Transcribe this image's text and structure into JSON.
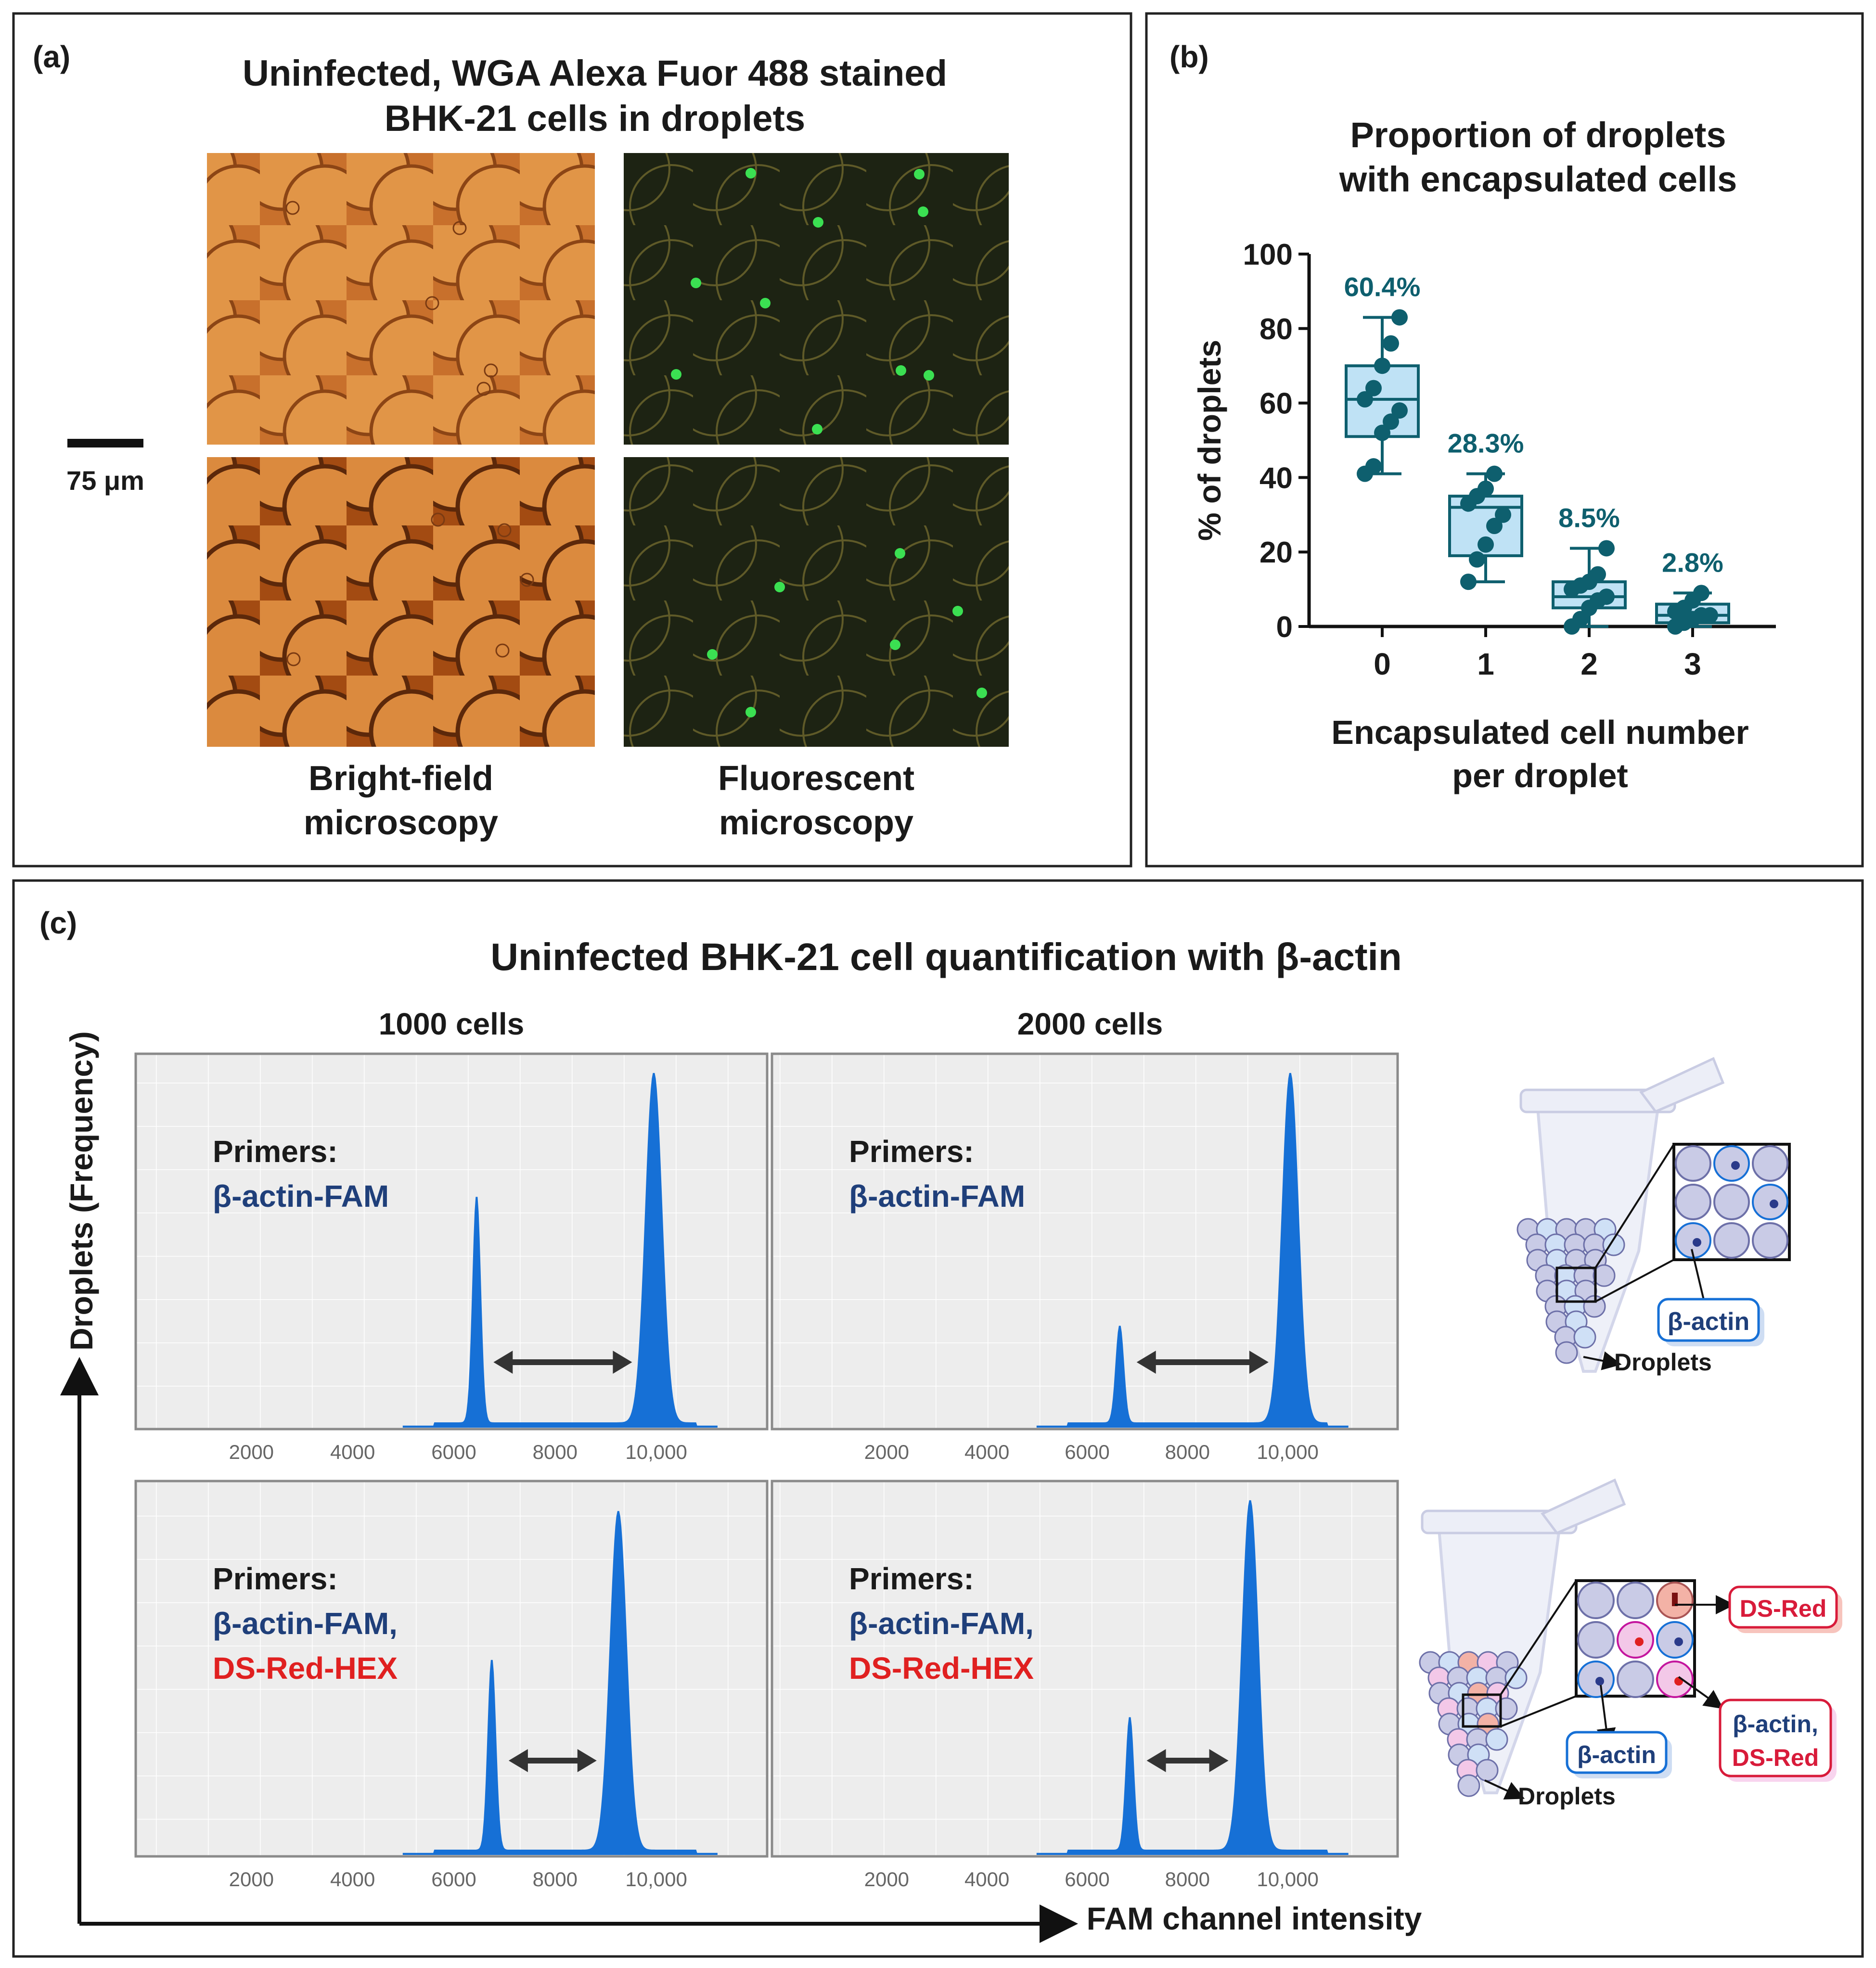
{
  "panel_a": {
    "letter": "(a)",
    "title_line1": "Uninfected, WGA Alexa Fuor 488 stained",
    "title_line2": "BHK-21 cells in droplets",
    "scale_bar_label": "75 μm",
    "caption_left_line1": "Bright-field",
    "caption_left_line2": "microscopy",
    "caption_right_line1": "Fluorescent",
    "caption_right_line2": "microscopy",
    "colors": {
      "brightfield": "#d9843c",
      "fluorescent_bg": "#1d2313",
      "cell_green": "#34d84a"
    }
  },
  "panel_b": {
    "letter": "(b)",
    "title_line1": "Proportion of droplets",
    "title_line2": "with encapsulated cells",
    "color": "#0e5f6e",
    "box_fill": "#bfe2f5",
    "chart_data": {
      "type": "box",
      "title": "Proportion of droplets with encapsulated cells",
      "xlabel_line1": "Encapsulated cell number",
      "xlabel_line2": "per droplet",
      "ylabel": "% of droplets",
      "ylim": [
        0,
        100
      ],
      "yticks": [
        0,
        20,
        40,
        60,
        80,
        100
      ],
      "categories": [
        "0",
        "1",
        "2",
        "3"
      ],
      "mean_labels": [
        "60.4%",
        "28.3%",
        "8.5%",
        "2.8%"
      ],
      "boxes": [
        {
          "min": 41,
          "q1": 51,
          "median": 61,
          "q3": 70,
          "max": 83
        },
        {
          "min": 12,
          "q1": 19,
          "median": 32,
          "q3": 35,
          "max": 41
        },
        {
          "min": 0,
          "q1": 5,
          "median": 8,
          "q3": 12,
          "max": 21
        },
        {
          "min": 0,
          "q1": 1,
          "median": 3,
          "q3": 6,
          "max": 9
        }
      ],
      "points": [
        [
          41,
          43,
          52,
          55,
          58,
          61,
          64,
          70,
          76,
          83
        ],
        [
          12,
          18,
          22,
          27,
          30,
          33,
          35,
          37,
          41
        ],
        [
          0,
          2,
          5,
          7,
          8,
          10,
          11,
          12,
          14,
          21
        ],
        [
          0,
          1,
          2,
          3,
          3,
          4,
          5,
          7,
          9
        ]
      ]
    }
  },
  "panel_c": {
    "letter": "(c)",
    "title": "Uninfected BHK-21 cell quantification with β-actin",
    "col_label_left": "1000 cells",
    "col_label_right": "2000 cells",
    "y_axis_label": "Droplets (Frequency)",
    "x_axis_label": "FAM channel intensity",
    "primers_label": "Primers:",
    "primer_fam": "β-actin-FAM",
    "primer_fam_comma": "β-actin-FAM,",
    "primer_hex": "DS-Red-HEX",
    "fam_color": "#1f3f7a",
    "hex_color": "#e02020",
    "peak_color": "#1670d6",
    "chart_data": [
      {
        "type": "area",
        "name": "1000 cells, β-actin-FAM",
        "xticks": [
          "2000",
          "4000",
          "6000",
          "8000",
          "10,000"
        ],
        "xlim": [
          0,
          12000
        ],
        "peaks": [
          {
            "x": 6450,
            "height": 0.63
          },
          {
            "x": 9950,
            "height": 0.97
          }
        ]
      },
      {
        "type": "area",
        "name": "2000 cells, β-actin-FAM",
        "xticks": [
          "2000",
          "4000",
          "6000",
          "8000",
          "10,000"
        ],
        "xlim": [
          0,
          12000
        ],
        "peaks": [
          {
            "x": 6650,
            "height": 0.27
          },
          {
            "x": 10050,
            "height": 0.97
          }
        ]
      },
      {
        "type": "area",
        "name": "1000 cells, β-actin-FAM, DS-Red-HEX",
        "xticks": [
          "2000",
          "4000",
          "6000",
          "8000",
          "10,000"
        ],
        "xlim": [
          0,
          12000
        ],
        "peaks": [
          {
            "x": 6750,
            "height": 0.53
          },
          {
            "x": 9250,
            "height": 0.94
          }
        ]
      },
      {
        "type": "area",
        "name": "2000 cells, β-actin-FAM, DS-Red-HEX",
        "xticks": [
          "2000",
          "4000",
          "6000",
          "8000",
          "10,000"
        ],
        "xlim": [
          0,
          12000
        ],
        "peaks": [
          {
            "x": 6850,
            "height": 0.37
          },
          {
            "x": 9250,
            "height": 0.97
          }
        ]
      }
    ],
    "schematic": {
      "droplets_label": "Droplets",
      "beta_actin_label": "β-actin",
      "ds_red_label": "DS-Red",
      "beta_actin_comma": "β-actin,",
      "ds_red_label2": "DS-Red",
      "colors": {
        "droplet": "#c9cbe6",
        "droplet_stroke": "#6d70a8",
        "blue_cell": "#cfe0f6",
        "red_cell": "#f3b2a6",
        "pink_cell": "#f3c8e8"
      }
    }
  }
}
